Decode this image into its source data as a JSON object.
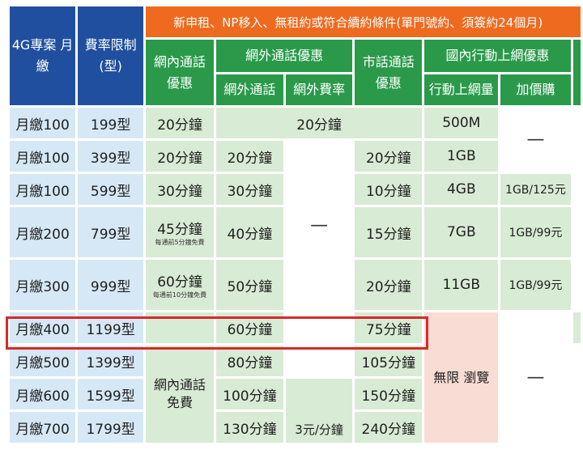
{
  "header": {
    "col_plan": "4G專案\n月繳",
    "col_rate": "費率限制\n(型)",
    "banner": "新申租、NP移入、無租約或符合續約條件(單門號約、須簽約24個月)",
    "on_net": "網內通話\n優惠",
    "off_net_group": "網外通話優惠",
    "off_net_call": "網外通話",
    "off_net_rate": "網外費率",
    "landline": "市話通話\n優惠",
    "data_group": "國內行動上網優惠",
    "data_volume": "行動上網量",
    "add_on": "加價購"
  },
  "rows": [
    {
      "plan": "月繳100",
      "rate": "199型",
      "on_net": "20分鐘",
      "off_net_merged": "20分鐘",
      "data": "500M"
    },
    {
      "plan": "月繳100",
      "rate": "399型",
      "on_net": "20分鐘",
      "off_net": "20分鐘",
      "landline": "20分鐘",
      "data": "1GB"
    },
    {
      "plan": "月繳100",
      "rate": "599型",
      "on_net": "30分鐘",
      "off_net": "30分鐘",
      "landline": "10分鐘",
      "data": "4GB",
      "add_on": "1GB/125元"
    },
    {
      "plan": "月繳200",
      "rate": "799型",
      "on_net": "45分鐘",
      "on_net_note": "每通前5分鐘免費",
      "off_net": "40分鐘",
      "landline": "15分鐘",
      "data": "7GB",
      "add_on": "1GB/99元"
    },
    {
      "plan": "月繳300",
      "rate": "999型",
      "on_net": "60分鐘",
      "on_net_note": "每通前10分鐘免費",
      "off_net": "50分鐘",
      "landline": "20分鐘",
      "data": "11GB",
      "add_on": "1GB/99元"
    },
    {
      "plan": "月繳400",
      "rate": "1199型",
      "off_net": "60分鐘",
      "landline": "75分鐘"
    },
    {
      "plan": "月繳500",
      "rate": "1399型",
      "off_net": "80分鐘",
      "landline": "105分鐘"
    },
    {
      "plan": "月繳600",
      "rate": "1599型",
      "off_net": "100分鐘",
      "landline": "150分鐘"
    },
    {
      "plan": "月繳700",
      "rate": "1799型",
      "off_net": "130分鐘",
      "landline": "240分鐘"
    }
  ],
  "merged": {
    "dash_top_addon": "—",
    "dash_off_rate": "—",
    "on_net_free": "網內通話\n免費",
    "off_rate_value": "3元/分鐘",
    "unlimited": "無限\n瀏覽",
    "dash_bottom_addon": "—"
  },
  "colors": {
    "header_blue": "#1f4f9e",
    "header_orange": "#ee6a1f",
    "header_green": "#2a9a4a",
    "cell_blue": "#d6e8f5",
    "cell_green": "#d8ebd4",
    "cell_pink": "#f9dcd3",
    "highlight_red": "#d62a2a"
  }
}
